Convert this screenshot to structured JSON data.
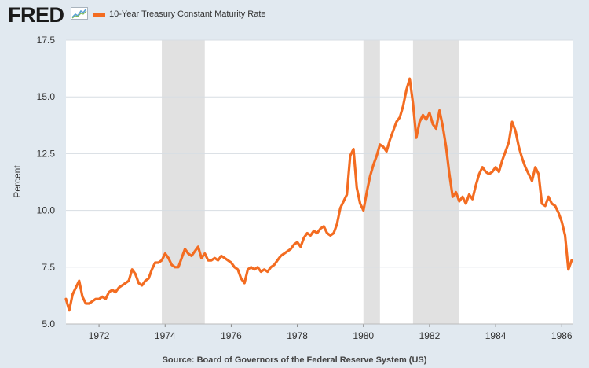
{
  "header": {
    "logo": "FRED",
    "logo_icon": "line-graph-icon",
    "legend_label": "10-Year Treasury Constant Maturity Rate"
  },
  "source": "Source: Board of Governors of the Federal Reserve System (US)",
  "colors": {
    "series": "#f36c21",
    "recession": "#e1e1e1",
    "grid": "#d7dde3",
    "background": "#e1e9f0"
  },
  "chart_data": {
    "type": "line",
    "title": "",
    "xlabel": "",
    "ylabel": "Percent",
    "xlim": [
      1971.0,
      1986.35
    ],
    "ylim": [
      5.0,
      17.5
    ],
    "grid": "horizontal",
    "legend": "top-left",
    "x_ticks": [
      {
        "value": 1972,
        "label": "1972"
      },
      {
        "value": 1974,
        "label": "1974"
      },
      {
        "value": 1976,
        "label": "1976"
      },
      {
        "value": 1978,
        "label": "1978"
      },
      {
        "value": 1980,
        "label": "1980"
      },
      {
        "value": 1982,
        "label": "1982"
      },
      {
        "value": 1984,
        "label": "1984"
      },
      {
        "value": 1986,
        "label": "1986"
      }
    ],
    "y_ticks": [
      {
        "value": 5.0,
        "label": "5.0"
      },
      {
        "value": 7.5,
        "label": "7.5"
      },
      {
        "value": 10.0,
        "label": "10.0"
      },
      {
        "value": 12.5,
        "label": "12.5"
      },
      {
        "value": 15.0,
        "label": "15.0"
      },
      {
        "value": 17.5,
        "label": "17.5"
      }
    ],
    "recessions": [
      [
        1973.9,
        1975.2
      ],
      [
        1980.0,
        1980.5
      ],
      [
        1981.5,
        1982.9
      ]
    ],
    "series": [
      {
        "x": [
          1971.0,
          1971.1,
          1971.2,
          1971.3,
          1971.4,
          1971.5,
          1971.6,
          1971.7,
          1971.8,
          1971.9,
          1972.0,
          1972.1,
          1972.2,
          1972.3,
          1972.4,
          1972.5,
          1972.6,
          1972.7,
          1972.8,
          1972.9,
          1973.0,
          1973.1,
          1973.2,
          1973.3,
          1973.4,
          1973.5,
          1973.6,
          1973.7,
          1973.8,
          1973.9,
          1974.0,
          1974.1,
          1974.2,
          1974.3,
          1974.4,
          1974.5,
          1974.6,
          1974.7,
          1974.8,
          1974.9,
          1975.0,
          1975.1,
          1975.2,
          1975.3,
          1975.4,
          1975.5,
          1975.6,
          1975.7,
          1975.8,
          1975.9,
          1976.0,
          1976.1,
          1976.2,
          1976.3,
          1976.4,
          1976.5,
          1976.6,
          1976.7,
          1976.8,
          1976.9,
          1977.0,
          1977.1,
          1977.2,
          1977.3,
          1977.4,
          1977.5,
          1977.6,
          1977.7,
          1977.8,
          1977.9,
          1978.0,
          1978.1,
          1978.2,
          1978.3,
          1978.4,
          1978.5,
          1978.6,
          1978.7,
          1978.8,
          1978.9,
          1979.0,
          1979.1,
          1979.2,
          1979.3,
          1979.4,
          1979.5,
          1979.6,
          1979.7,
          1979.8,
          1979.9,
          1980.0,
          1980.1,
          1980.2,
          1980.3,
          1980.4,
          1980.5,
          1980.6,
          1980.7,
          1980.8,
          1980.9,
          1981.0,
          1981.1,
          1981.2,
          1981.3,
          1981.4,
          1981.5,
          1981.6,
          1981.7,
          1981.8,
          1981.9,
          1982.0,
          1982.1,
          1982.2,
          1982.3,
          1982.4,
          1982.5,
          1982.6,
          1982.7,
          1982.8,
          1982.9,
          1983.0,
          1983.1,
          1983.2,
          1983.3,
          1983.4,
          1983.5,
          1983.6,
          1983.7,
          1983.8,
          1983.9,
          1984.0,
          1984.1,
          1984.2,
          1984.3,
          1984.4,
          1984.5,
          1984.6,
          1984.7,
          1984.8,
          1984.9,
          1985.0,
          1985.1,
          1985.2,
          1985.3,
          1985.4,
          1985.5,
          1985.6,
          1985.7,
          1985.8,
          1985.9,
          1986.0,
          1986.1,
          1986.2,
          1986.3
        ],
        "y": [
          6.1,
          5.6,
          6.3,
          6.6,
          6.9,
          6.2,
          5.9,
          5.9,
          6.0,
          6.1,
          6.1,
          6.2,
          6.1,
          6.4,
          6.5,
          6.4,
          6.6,
          6.7,
          6.8,
          6.9,
          7.4,
          7.2,
          6.8,
          6.7,
          6.9,
          7.0,
          7.4,
          7.7,
          7.7,
          7.8,
          8.1,
          7.9,
          7.6,
          7.5,
          7.5,
          7.9,
          8.3,
          8.1,
          8.0,
          8.2,
          8.4,
          7.9,
          8.1,
          7.8,
          7.8,
          7.9,
          7.8,
          8.0,
          7.9,
          7.8,
          7.7,
          7.5,
          7.4,
          7.0,
          6.8,
          7.4,
          7.5,
          7.4,
          7.5,
          7.3,
          7.4,
          7.3,
          7.5,
          7.6,
          7.8,
          8.0,
          8.1,
          8.2,
          8.3,
          8.5,
          8.6,
          8.4,
          8.8,
          9.0,
          8.9,
          9.1,
          9.0,
          9.2,
          9.3,
          9.0,
          8.9,
          9.0,
          9.4,
          10.1,
          10.4,
          10.7,
          12.4,
          12.7,
          11.0,
          10.3,
          10.0,
          10.8,
          11.5,
          12.0,
          12.4,
          12.9,
          12.8,
          12.6,
          13.1,
          13.5,
          13.9,
          14.1,
          14.6,
          15.3,
          15.8,
          14.7,
          13.2,
          13.9,
          14.2,
          14.0,
          14.3,
          13.8,
          13.6,
          14.4,
          13.7,
          12.8,
          11.6,
          10.6,
          10.8,
          10.4,
          10.6,
          10.3,
          10.7,
          10.5,
          11.1,
          11.6,
          11.9,
          11.7,
          11.6,
          11.7,
          11.9,
          11.7,
          12.2,
          12.6,
          13.0,
          13.9,
          13.5,
          12.8,
          12.3,
          11.9,
          11.6,
          11.3,
          11.9,
          11.6,
          10.3,
          10.2,
          10.6,
          10.3,
          10.2,
          9.9,
          9.5,
          8.9,
          7.4,
          7.8
        ]
      }
    ]
  }
}
